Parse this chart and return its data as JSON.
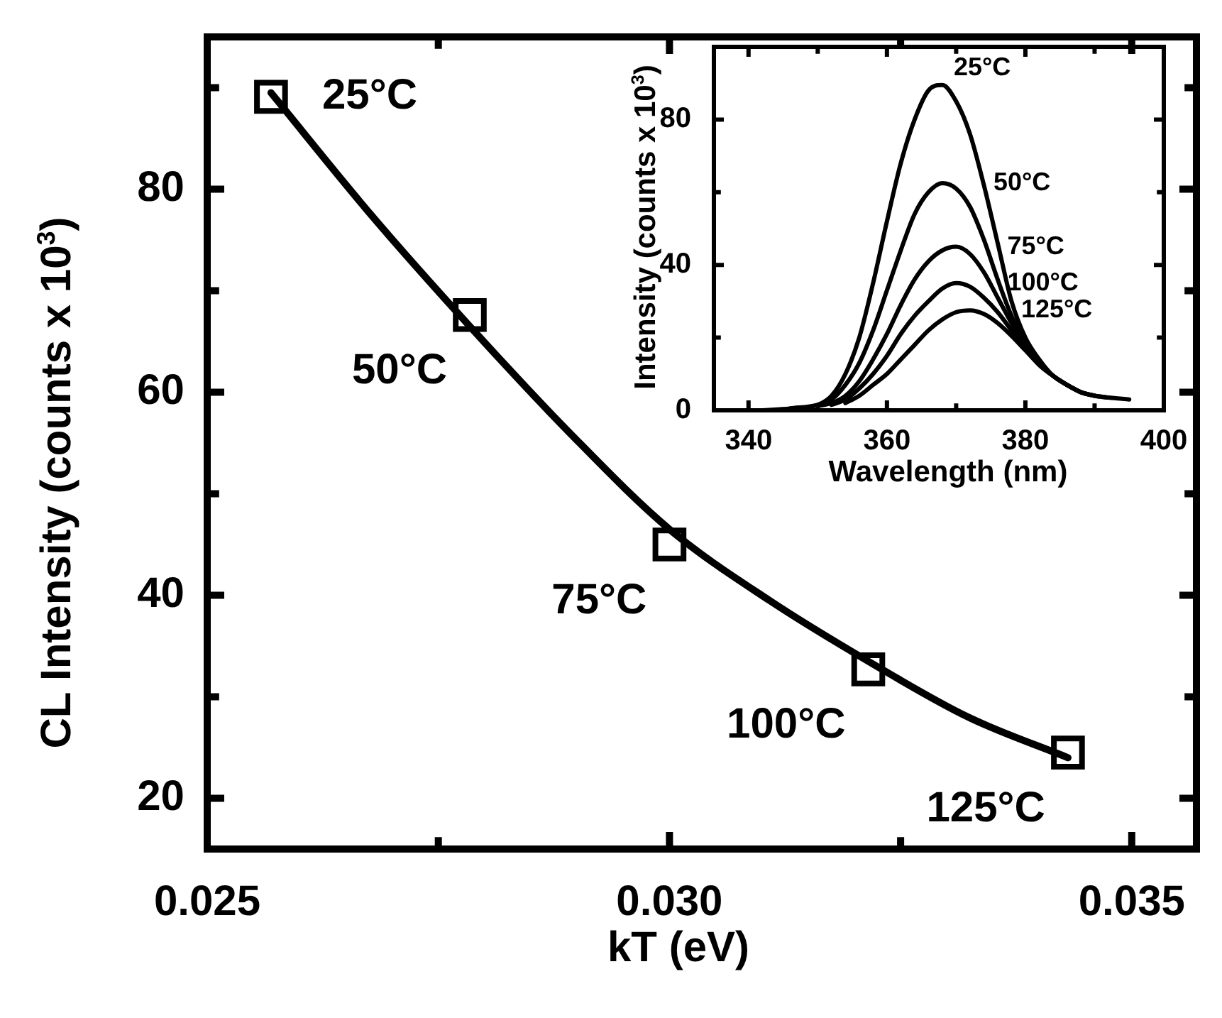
{
  "chart_data": [
    {
      "type": "scatter",
      "xlabel": "kT (eV)",
      "ylabel": "CL Intensity (counts x 10$^{3}$)",
      "xlim": [
        0.025,
        0.0357
      ],
      "xticks": [
        {
          "value": 0.025,
          "label": "0.025"
        },
        {
          "value": 0.0275,
          "label": null
        },
        {
          "value": 0.03,
          "label": "0.030"
        },
        {
          "value": 0.0325,
          "label": null
        },
        {
          "value": 0.035,
          "label": "0.035"
        }
      ],
      "ylim": [
        15,
        95
      ],
      "yticks": [
        20,
        {
          "value": 30,
          "label": null
        },
        40,
        {
          "value": 50,
          "label": null
        },
        60,
        {
          "value": 70,
          "label": null
        },
        80,
        {
          "value": 90,
          "label": null
        }
      ],
      "grid": false,
      "legend": false,
      "marker": "square",
      "series": [
        {
          "color": "#000000",
          "x": [
            0.02569,
            0.02784,
            0.03,
            0.03215,
            0.03431
          ],
          "values": [
            89.1,
            67.6,
            45.0,
            32.7,
            24.5
          ]
        },
        {
          "type": "line",
          "color": "#000000",
          "marker": "none",
          "line_style": "solid",
          "x": [
            0.02569,
            0.02677,
            0.02784,
            0.02892,
            0.03,
            0.03108,
            0.03215,
            0.03323,
            0.03431
          ],
          "values": [
            89.5,
            77.5,
            66.5,
            56,
            46.5,
            39.5,
            33.5,
            28,
            24
          ]
        }
      ],
      "annotations": [
        {
          "text": "25°C",
          "x": 0.02569,
          "y": 89.1
        },
        {
          "text": "50°C",
          "x": 0.02784,
          "y": 67.6
        },
        {
          "text": "75°C",
          "x": 0.03,
          "y": 45.0
        },
        {
          "text": "100°C",
          "x": 0.03215,
          "y": 32.7
        },
        {
          "text": "125°C",
          "x": 0.03431,
          "y": 24.5
        }
      ]
    },
    {
      "type": "line",
      "xlabel": "Wavelength (nm)",
      "ylabel": "Intensity (counts x 10$^{3}$)",
      "xlim": [
        335,
        400
      ],
      "xticks": [
        340,
        {
          "value": 350,
          "label": null
        },
        360,
        {
          "value": 370,
          "label": null
        },
        380,
        {
          "value": 390,
          "label": null
        },
        400
      ],
      "ylim": [
        0,
        100
      ],
      "yticks": [
        0,
        {
          "value": 20,
          "label": null
        },
        40,
        {
          "value": 60,
          "label": null
        },
        80
      ],
      "grid": false,
      "legend": false,
      "marker": "none",
      "line_style": "solid",
      "series": [
        {
          "color": "#000000",
          "x": [
            342,
            346,
            350,
            352,
            354,
            356,
            358,
            360,
            362,
            364,
            366,
            368,
            370,
            372,
            374,
            376,
            378,
            380,
            382,
            384,
            386,
            388,
            390,
            392,
            395
          ],
          "values": [
            0,
            0.5,
            1.5,
            4,
            10,
            20,
            35,
            52,
            68,
            80,
            88,
            89.5,
            85,
            76,
            62,
            46,
            30,
            20,
            14,
            9.5,
            7,
            5,
            4,
            3.5,
            3
          ]
        },
        {
          "color": "#000000",
          "x": [
            346,
            350,
            352,
            354,
            356,
            358,
            360,
            362,
            364,
            366,
            368,
            370,
            372,
            374,
            376,
            378,
            380,
            382,
            384,
            386,
            388,
            390,
            392
          ],
          "values": [
            0.5,
            1.5,
            3,
            7,
            13,
            22,
            33,
            44,
            54,
            60,
            62.5,
            61,
            56,
            47,
            36,
            26,
            19,
            13,
            9.5,
            7,
            5,
            4,
            3.5
          ]
        },
        {
          "color": "#000000",
          "x": [
            350,
            352,
            354,
            356,
            358,
            360,
            362,
            364,
            366,
            368,
            370,
            372,
            374,
            376,
            378,
            380,
            382,
            384,
            386,
            388,
            390
          ],
          "values": [
            1.2,
            2,
            4,
            8,
            14,
            21,
            29,
            36,
            41,
            44,
            45,
            43,
            38,
            31,
            24,
            18,
            13,
            9.5,
            7,
            5,
            4
          ]
        },
        {
          "color": "#000000",
          "x": [
            352,
            354,
            356,
            358,
            360,
            362,
            364,
            366,
            368,
            370,
            372,
            374,
            376,
            378,
            380,
            382,
            384,
            386,
            388
          ],
          "values": [
            1.5,
            3,
            6,
            10,
            15,
            21,
            26,
            30,
            33.5,
            35,
            34,
            31,
            27,
            22,
            17,
            12.5,
            9.5,
            7,
            5
          ]
        },
        {
          "color": "#000000",
          "x": [
            354,
            356,
            358,
            360,
            362,
            364,
            366,
            368,
            370,
            372,
            374,
            376,
            378,
            380,
            382,
            384,
            386
          ],
          "values": [
            2,
            4,
            7,
            10,
            14,
            18,
            22,
            25,
            27,
            27.5,
            26.5,
            24,
            20.5,
            16.5,
            12.5,
            9.5,
            7
          ]
        }
      ],
      "annotations": [
        {
          "text": "25°C",
          "x": 368,
          "y": 89.5
        },
        {
          "text": "50°C",
          "x": 368,
          "y": 62.5
        },
        {
          "text": "75°C",
          "x": 370,
          "y": 45
        },
        {
          "text": "100°C",
          "x": 370,
          "y": 35
        },
        {
          "text": "125°C",
          "x": 372,
          "y": 27.5
        }
      ]
    }
  ]
}
